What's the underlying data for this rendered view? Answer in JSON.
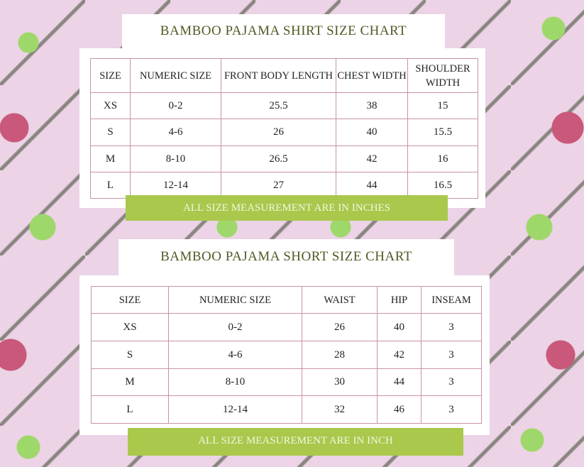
{
  "shirt": {
    "title": "BAMBOO PAJAMA SHIRT SIZE CHART",
    "headers": [
      "SIZE",
      "NUMERIC SIZE",
      "FRONT BODY LENGTH",
      "CHEST WIDTH",
      "SHOULDER WIDTH"
    ],
    "rows": [
      [
        "XS",
        "0-2",
        "25.5",
        "38",
        "15"
      ],
      [
        "S",
        "4-6",
        "26",
        "40",
        "15.5"
      ],
      [
        "M",
        "8-10",
        "26.5",
        "42",
        "16"
      ],
      [
        "L",
        "12-14",
        "27",
        "44",
        "16.5"
      ]
    ],
    "note": "ALL SIZE MEASUREMENT ARE IN INCHES"
  },
  "short": {
    "title": "BAMBOO PAJAMA SHORT SIZE CHART",
    "headers": [
      "SIZE",
      "NUMERIC SIZE",
      "WAIST",
      "HIP",
      "INSEAM"
    ],
    "rows": [
      [
        "XS",
        "0-2",
        "26",
        "40",
        "3"
      ],
      [
        "S",
        "4-6",
        "28",
        "42",
        "3"
      ],
      [
        "M",
        "8-10",
        "30",
        "44",
        "3"
      ],
      [
        "L",
        "12-14",
        "32",
        "46",
        "3"
      ]
    ],
    "note": "ALL SIZE MEASUREMENT ARE IN INCH"
  },
  "colors": {
    "title": "#4f5a24",
    "banner": "#a9c84c",
    "border": "#c892aa",
    "background": "#ecd3e6"
  }
}
